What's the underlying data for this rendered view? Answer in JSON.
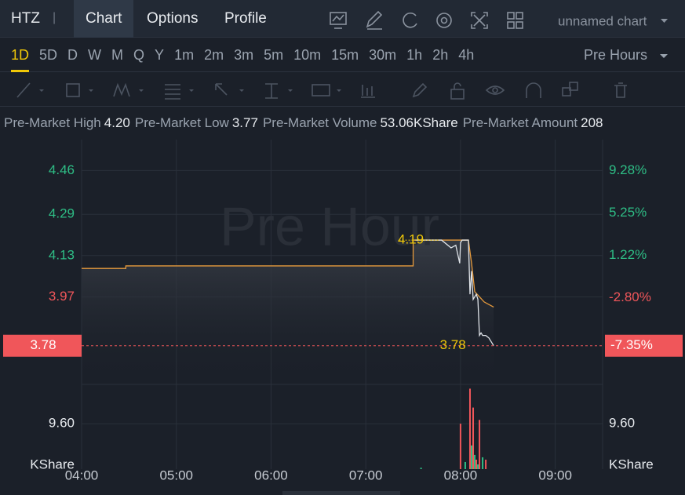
{
  "header": {
    "symbol": "HTZ",
    "tabs": [
      "Chart",
      "Options",
      "Profile"
    ],
    "active_tab": 0,
    "chart_name": "unnamed chart"
  },
  "timeframes": {
    "items": [
      "1D",
      "5D",
      "D",
      "W",
      "M",
      "Q",
      "Y",
      "1m",
      "2m",
      "3m",
      "5m",
      "10m",
      "15m",
      "30m",
      "1h",
      "2h",
      "4h"
    ],
    "active": 0,
    "session": "Pre Hours"
  },
  "info_line": [
    {
      "label": "Pre-Market High",
      "value": "4.20"
    },
    {
      "label": "Pre-Market Low",
      "value": "3.77"
    },
    {
      "label": "Pre-Market Volume",
      "value": "53.06KShare"
    },
    {
      "label": "Pre-Market Amount",
      "value": "208"
    }
  ],
  "chart_data": {
    "type": "line",
    "watermark": "Pre Hour",
    "xlim": [
      240,
      570
    ],
    "xticks": [
      {
        "value": 240,
        "label": "04:00"
      },
      {
        "value": 300,
        "label": "05:00"
      },
      {
        "value": 360,
        "label": "06:00"
      },
      {
        "value": 420,
        "label": "07:00"
      },
      {
        "value": 480,
        "label": "08:00"
      },
      {
        "value": 540,
        "label": "09:00"
      }
    ],
    "ylim": [
      3.63,
      4.58
    ],
    "yticks": [
      4.46,
      4.29,
      4.13,
      3.97
    ],
    "y2lim": [
      -11.02,
      12.22
    ],
    "y2ticks": [
      {
        "value": 9.28,
        "label": "9.28%"
      },
      {
        "value": 5.25,
        "label": "5.25%"
      },
      {
        "value": 1.22,
        "label": "1.22%"
      },
      {
        "value": -2.8,
        "label": "-2.80%"
      }
    ],
    "up_color": "#2ebd85",
    "down_color": "#f0565a",
    "grid": true,
    "series": [
      {
        "color": "#e69a3c",
        "x": [
          240,
          268,
          268,
          450,
          450,
          485,
          487,
          489,
          492,
          495,
          498,
          501
        ],
        "values": [
          4.08,
          4.08,
          4.09,
          4.09,
          4.19,
          4.19,
          4.1,
          3.99,
          3.97,
          3.95,
          3.94,
          3.93
        ]
      },
      {
        "color": "#dfe3e8",
        "x": [
          451,
          460,
          468,
          474,
          477,
          479.5,
          480,
          481,
          482,
          484,
          485,
          486,
          487,
          488,
          489,
          490,
          491,
          492,
          493,
          494,
          496,
          498,
          500,
          501
        ],
        "values": [
          4.19,
          4.19,
          4.19,
          4.16,
          4.17,
          4.1,
          4.18,
          4.19,
          4.19,
          4.19,
          4.19,
          3.98,
          4.07,
          3.96,
          3.97,
          3.98,
          3.96,
          3.82,
          3.83,
          3.82,
          3.82,
          3.81,
          3.79,
          3.78
        ]
      }
    ],
    "markers": [
      4.19,
      3.78
    ],
    "last_price": 3.78,
    "last_change": {
      "value": -7.35,
      "label": "-7.35%"
    },
    "volume": {
      "unit": "KShare",
      "ylim": [
        0,
        17.9
      ],
      "yticks": [
        {
          "value": 9.6,
          "label": "9.60"
        }
      ],
      "x": [
        455,
        480,
        483,
        486,
        487,
        488,
        489,
        490,
        491,
        492,
        494,
        496
      ],
      "values": [
        0.3,
        9.6,
        1.5,
        17.0,
        5.0,
        13.0,
        3.0,
        2.0,
        1.0,
        10.4,
        2.5,
        2.0
      ],
      "colors": [
        "#2ebd85",
        "#f0565a",
        "#2ebd85",
        "#f0565a",
        "#2ebd85",
        "#f0565a",
        "#2ebd85",
        "#f0565a",
        "#2ebd85",
        "#f0565a",
        "#2ebd85",
        "#f0565a"
      ]
    }
  }
}
